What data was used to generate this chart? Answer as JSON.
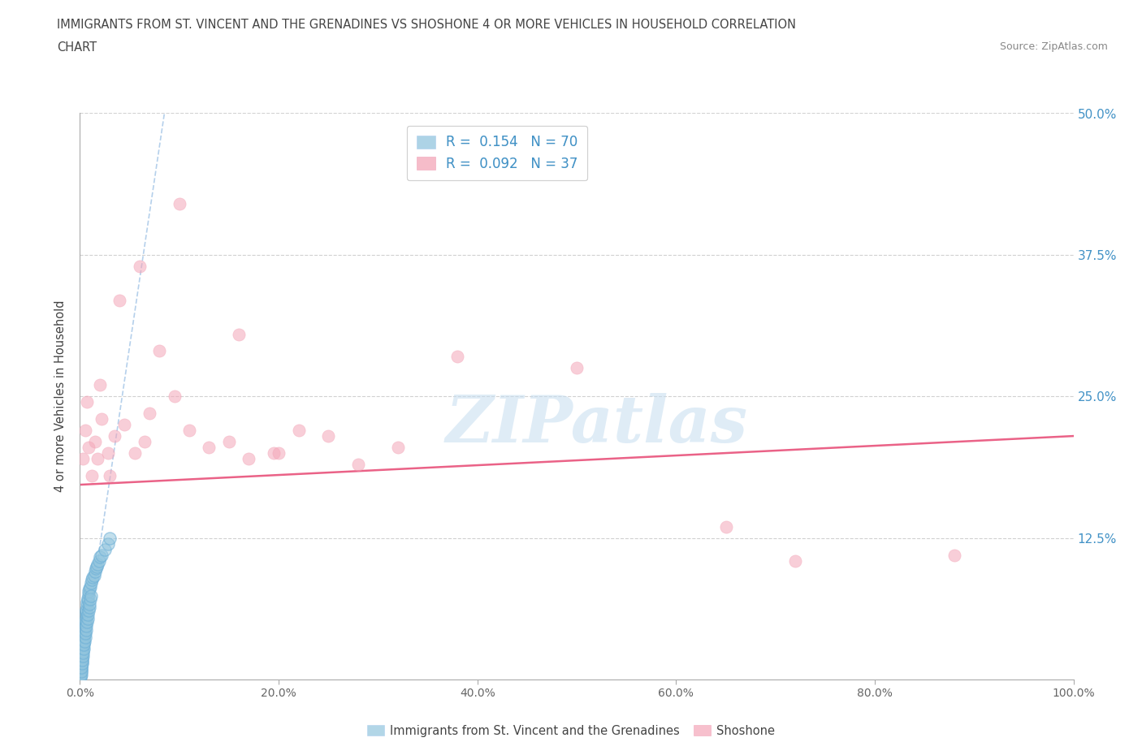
{
  "title_line1": "IMMIGRANTS FROM ST. VINCENT AND THE GRENADINES VS SHOSHONE 4 OR MORE VEHICLES IN HOUSEHOLD CORRELATION",
  "title_line2": "CHART",
  "source_text": "Source: ZipAtlas.com",
  "ylabel": "4 or more Vehicles in Household",
  "watermark": "ZIPatlas",
  "legend_entry1": "R =  0.154   N = 70",
  "legend_entry2": "R =  0.092   N = 37",
  "legend_label1": "Immigrants from St. Vincent and the Grenadines",
  "legend_label2": "Shoshone",
  "R1": 0.154,
  "N1": 70,
  "R2": 0.092,
  "N2": 37,
  "blue_color": "#92c5de",
  "blue_edge_color": "#6baed6",
  "pink_color": "#f4a6b8",
  "pink_edge_color": "#d94f7a",
  "blue_line_color": "#a8c8e8",
  "pink_line_color": "#e8517a",
  "title_color": "#444444",
  "ylabel_color": "#444444",
  "tick_color_right": "#4292c6",
  "tick_color_bottom": "#666666",
  "grid_color": "#cccccc",
  "background_color": "#ffffff",
  "xlim": [
    0.0,
    100.0
  ],
  "ylim": [
    0.0,
    50.0
  ],
  "yticks_right": [
    12.5,
    25.0,
    37.5,
    50.0
  ],
  "xtick_vals": [
    0,
    20,
    40,
    60,
    80,
    100
  ],
  "xtick_labels": [
    "0.0%",
    "20.0%",
    "40.0%",
    "60.0%",
    "80.0%",
    "100.0%"
  ],
  "ytick_labels_right": [
    "12.5%",
    "25.0%",
    "37.5%",
    "50.0%"
  ],
  "blue_trend_x": [
    0.0,
    8.5
  ],
  "blue_trend_y": [
    0.0,
    50.0
  ],
  "pink_trend_x": [
    0.0,
    100.0
  ],
  "pink_trend_y": [
    17.2,
    21.5
  ],
  "blue_x": [
    0.05,
    0.08,
    0.1,
    0.12,
    0.15,
    0.18,
    0.2,
    0.22,
    0.25,
    0.28,
    0.3,
    0.32,
    0.35,
    0.38,
    0.4,
    0.42,
    0.45,
    0.48,
    0.5,
    0.52,
    0.55,
    0.58,
    0.6,
    0.62,
    0.65,
    0.68,
    0.7,
    0.75,
    0.8,
    0.85,
    0.9,
    0.95,
    1.0,
    1.1,
    1.2,
    1.3,
    1.4,
    1.5,
    1.6,
    1.7,
    1.8,
    1.9,
    2.0,
    2.2,
    2.5,
    2.8,
    3.0,
    0.06,
    0.09,
    0.13,
    0.16,
    0.19,
    0.23,
    0.27,
    0.31,
    0.36,
    0.41,
    0.46,
    0.51,
    0.56,
    0.61,
    0.66,
    0.71,
    0.76,
    0.81,
    0.86,
    0.91,
    0.96,
    1.05,
    1.15
  ],
  "blue_y": [
    0.3,
    0.5,
    0.8,
    1.0,
    1.2,
    1.5,
    1.8,
    2.0,
    2.2,
    2.5,
    2.8,
    3.0,
    3.2,
    3.5,
    3.8,
    4.0,
    4.2,
    4.5,
    4.8,
    5.0,
    5.2,
    5.5,
    5.8,
    6.0,
    6.2,
    6.5,
    6.8,
    7.0,
    7.2,
    7.5,
    7.8,
    8.0,
    8.2,
    8.5,
    8.8,
    9.0,
    9.2,
    9.5,
    9.8,
    10.0,
    10.2,
    10.5,
    10.8,
    11.0,
    11.5,
    12.0,
    12.5,
    0.2,
    0.4,
    0.7,
    1.1,
    1.4,
    1.7,
    2.1,
    2.4,
    2.7,
    3.1,
    3.4,
    3.7,
    4.1,
    4.4,
    4.7,
    5.1,
    5.4,
    5.7,
    6.1,
    6.4,
    6.7,
    7.1,
    7.4
  ],
  "pink_x": [
    0.3,
    0.5,
    0.7,
    0.9,
    1.2,
    1.5,
    1.8,
    2.2,
    2.8,
    3.5,
    4.5,
    5.5,
    6.5,
    8.0,
    9.5,
    11.0,
    13.0,
    15.0,
    17.0,
    19.5,
    22.0,
    25.0,
    28.0,
    32.0,
    38.0,
    50.0,
    65.0,
    72.0,
    88.0,
    4.0,
    6.0,
    10.0,
    16.0,
    20.0,
    2.0,
    3.0,
    7.0
  ],
  "pink_y": [
    19.5,
    22.0,
    24.5,
    20.5,
    18.0,
    21.0,
    19.5,
    23.0,
    20.0,
    21.5,
    22.5,
    20.0,
    21.0,
    29.0,
    25.0,
    22.0,
    20.5,
    21.0,
    19.5,
    20.0,
    22.0,
    21.5,
    19.0,
    20.5,
    28.5,
    27.5,
    13.5,
    10.5,
    11.0,
    33.5,
    36.5,
    42.0,
    30.5,
    20.0,
    26.0,
    18.0,
    23.5
  ]
}
